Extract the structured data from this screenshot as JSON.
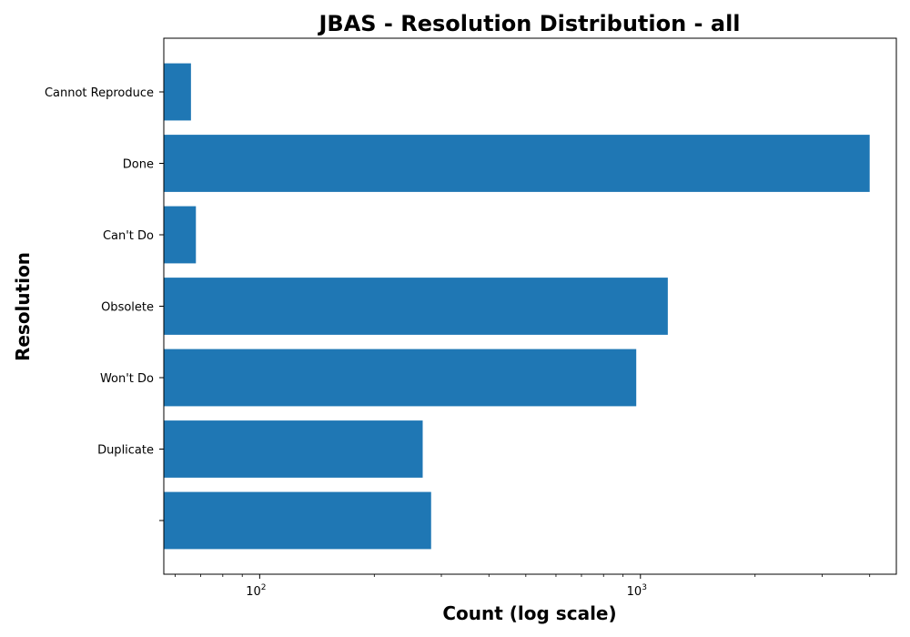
{
  "chart_data": {
    "type": "bar",
    "orientation": "horizontal",
    "title": "JBAS - Resolution Distribution - all",
    "xlabel": "Count (log scale)",
    "ylabel": "Resolution",
    "x_scale": "log",
    "xlim": [
      56,
      4700
    ],
    "categories": [
      "Cannot Reproduce",
      "Done",
      "Can't Do",
      "Obsolete",
      "Won't Do",
      "Duplicate",
      ""
    ],
    "values": [
      66,
      4000,
      68,
      1180,
      975,
      268,
      282
    ],
    "x_ticks": [
      {
        "value": 100,
        "base": "10",
        "exp": "2"
      },
      {
        "value": 1000,
        "base": "10",
        "exp": "3"
      }
    ],
    "bar_color": "#1f77b4",
    "grid": false
  }
}
